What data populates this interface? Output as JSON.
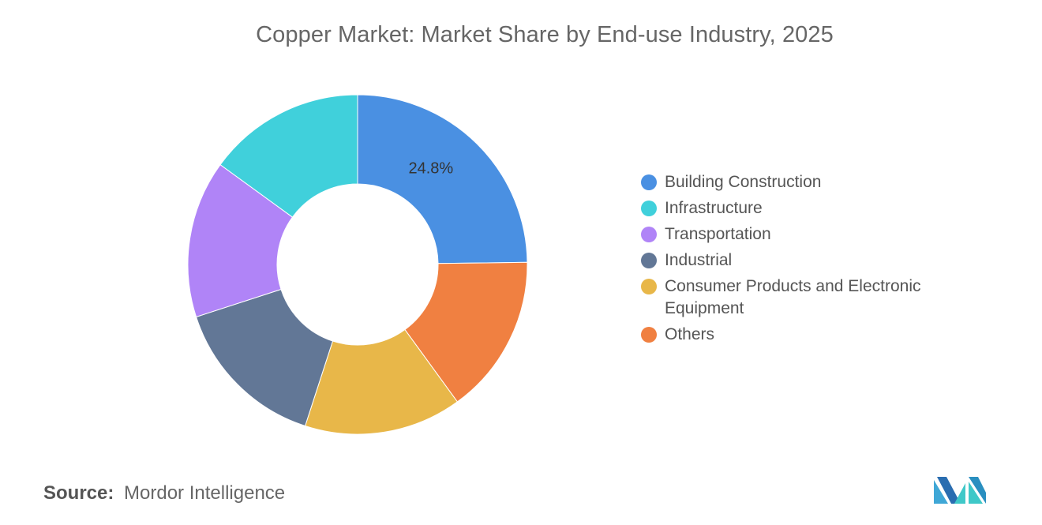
{
  "chart_data": {
    "type": "pie",
    "donut": true,
    "title": "Copper Market: Market Share by End-use Industry, 2025",
    "categories": [
      "Building Construction",
      "Others",
      "Consumer Products and Electronic Equipment",
      "Industrial",
      "Transportation",
      "Infrastructure"
    ],
    "values": [
      24.8,
      15.2,
      15.0,
      15.0,
      15.0,
      15.0
    ],
    "colors": [
      "#4a90e2",
      "#f08041",
      "#e8b749",
      "#627796",
      "#b084f7",
      "#40d0db"
    ],
    "data_labels": [
      "24.8%",
      "",
      "",
      "",
      "",
      ""
    ],
    "legend_position": "right"
  },
  "legend": [
    {
      "label": "Building Construction",
      "color": "#4a90e2"
    },
    {
      "label": "Infrastructure",
      "color": "#40d0db"
    },
    {
      "label": "Transportation",
      "color": "#b084f7"
    },
    {
      "label": "Industrial",
      "color": "#627796"
    },
    {
      "label": "Consumer Products and Electronic Equipment",
      "color": "#e8b749"
    },
    {
      "label": "Others",
      "color": "#f08041"
    }
  ],
  "source": {
    "key": "Source:",
    "value": "Mordor Intelligence"
  },
  "logo": {
    "icon": "mordor-intelligence-logo"
  }
}
